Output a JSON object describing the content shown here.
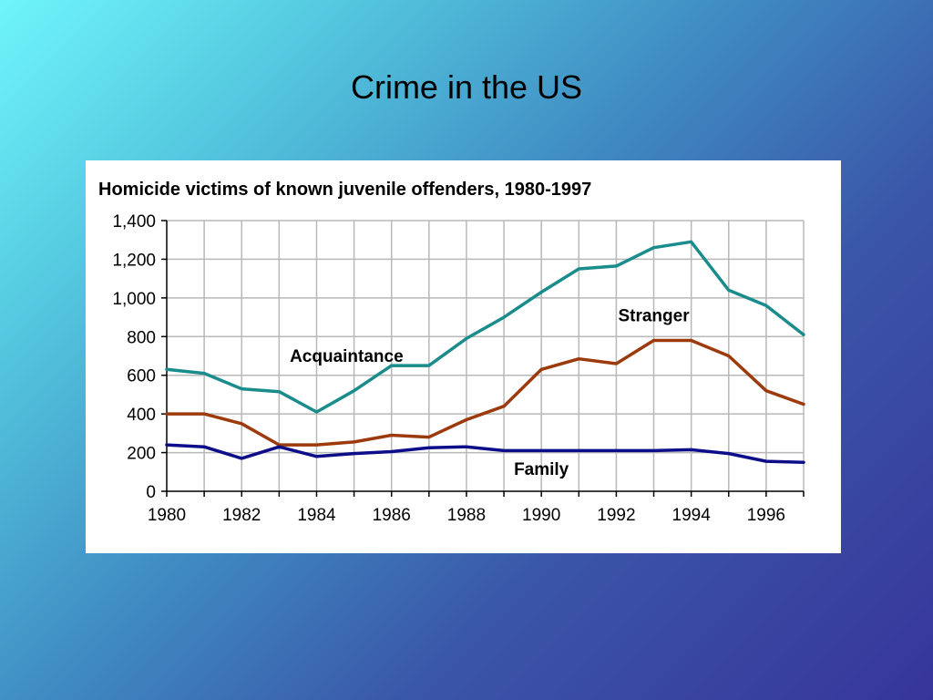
{
  "slide": {
    "title": "Crime in the US"
  },
  "colors": {
    "acquaintance": "#1a8c8c",
    "stranger": "#9c3a0c",
    "family": "#0d0d8a",
    "grid": "#b8b8b8",
    "axis": "#000000"
  },
  "chart_data": {
    "type": "line",
    "title": "Homicide victims of known juvenile offenders, 1980-1997",
    "xlabel": "",
    "ylabel": "",
    "x": [
      1980,
      1981,
      1982,
      1983,
      1984,
      1985,
      1986,
      1987,
      1988,
      1989,
      1990,
      1991,
      1992,
      1993,
      1994,
      1995,
      1996,
      1997
    ],
    "xlim": [
      1980,
      1997
    ],
    "ylim": [
      0,
      1400
    ],
    "x_ticks": [
      1980,
      1982,
      1984,
      1986,
      1988,
      1990,
      1992,
      1994,
      1996
    ],
    "x_tick_labels": [
      "1980",
      "1982",
      "1984",
      "1986",
      "1988",
      "1990",
      "1992",
      "1994",
      "1996"
    ],
    "y_ticks": [
      0,
      200,
      400,
      600,
      800,
      1000,
      1200,
      1400
    ],
    "y_tick_labels": [
      "0",
      "200",
      "400",
      "600",
      "800",
      "1,000",
      "1,200",
      "1,400"
    ],
    "grid": true,
    "legend": "inline labels",
    "series": [
      {
        "name": "Acquaintance",
        "color_key": "acquaintance",
        "values": [
          630,
          610,
          530,
          515,
          410,
          520,
          650,
          650,
          790,
          900,
          1030,
          1150,
          1165,
          1260,
          1290,
          1040,
          960,
          810
        ],
        "label_anchor": [
          1984.8,
          670
        ]
      },
      {
        "name": "Stranger",
        "color_key": "stranger",
        "values": [
          400,
          400,
          350,
          240,
          240,
          255,
          290,
          280,
          370,
          440,
          630,
          685,
          660,
          780,
          780,
          700,
          520,
          450
        ],
        "label_anchor": [
          1993.0,
          880
        ]
      },
      {
        "name": "Family",
        "color_key": "family",
        "values": [
          240,
          230,
          170,
          230,
          180,
          195,
          205,
          225,
          230,
          210,
          210,
          210,
          210,
          210,
          215,
          195,
          155,
          150
        ],
        "label_anchor": [
          1990.0,
          85
        ]
      }
    ]
  }
}
